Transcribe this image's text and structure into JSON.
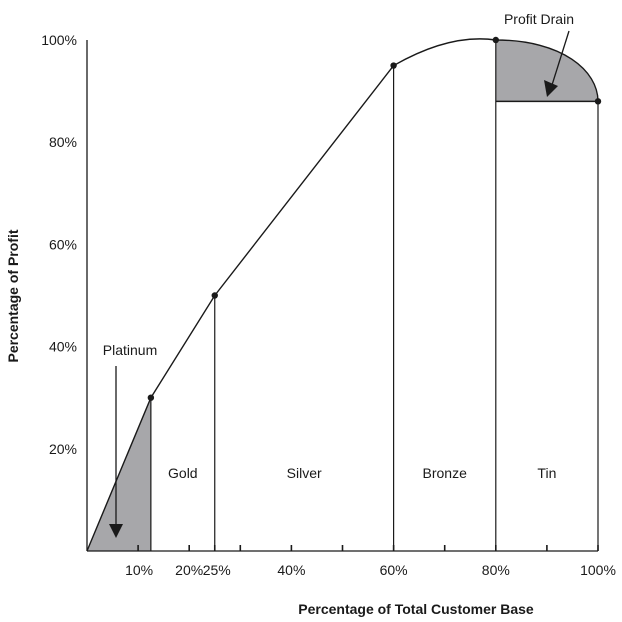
{
  "chart_data": {
    "type": "line",
    "title": "",
    "xlabel": "Percentage of Total Customer Base",
    "ylabel": "Percentage of Profit",
    "xlim": [
      0,
      100
    ],
    "ylim": [
      0,
      100
    ],
    "x_ticks": [
      10,
      20,
      25,
      40,
      60,
      80,
      100
    ],
    "x_tick_labels": [
      "10%",
      "20%",
      "25%",
      "40%",
      "60%",
      "80%",
      "100%"
    ],
    "x_minor_ticks": [
      30,
      50,
      70,
      90
    ],
    "y_ticks": [
      20,
      40,
      60,
      80,
      100
    ],
    "y_tick_labels": [
      "20%",
      "40%",
      "60%",
      "80%",
      "100%"
    ],
    "grid": false,
    "series": [
      {
        "points": [
          [
            0,
            0
          ],
          [
            12.5,
            30
          ],
          [
            25,
            50
          ],
          [
            60,
            95
          ],
          [
            80,
            100
          ],
          [
            100,
            88
          ]
        ]
      }
    ],
    "segments": [
      {
        "name": "Platinum",
        "from": 0,
        "to": 12.5
      },
      {
        "name": "Gold",
        "from": 12.5,
        "to": 25
      },
      {
        "name": "Silver",
        "from": 25,
        "to": 60
      },
      {
        "name": "Bronze",
        "from": 60,
        "to": 80
      },
      {
        "name": "Tin",
        "from": 80,
        "to": 100
      }
    ],
    "shaded_regions": [
      "Platinum",
      "Profit Drain"
    ],
    "annotations": [
      "Platinum",
      "Profit Drain"
    ],
    "colors": {
      "line": "#1a1a1a",
      "fill": "#a7a7aa"
    }
  }
}
